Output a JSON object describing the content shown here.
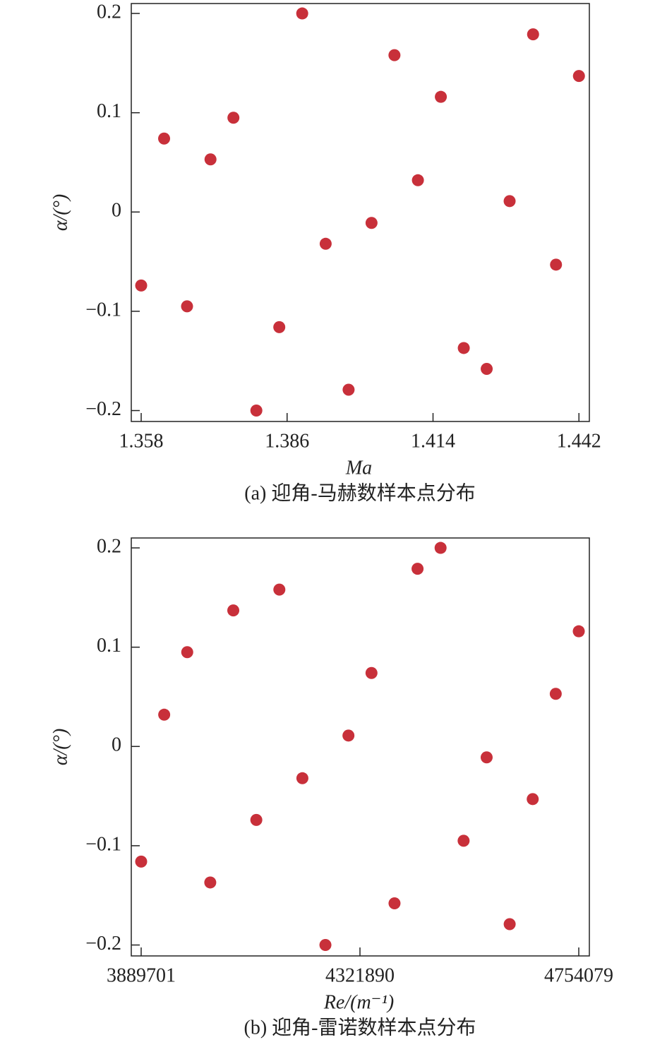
{
  "chart_data": [
    {
      "type": "scatter",
      "caption": "(a) 迎角-马赫数样本点分布",
      "xlabel": "Ma",
      "ylabel": "α/(°)",
      "color": "#c8303a",
      "x": [
        1.358,
        1.3624,
        1.3668,
        1.3713,
        1.3757,
        1.3801,
        1.3845,
        1.3889,
        1.3934,
        1.3978,
        1.4022,
        1.4066,
        1.4111,
        1.4155,
        1.4199,
        1.4243,
        1.4287,
        1.4332,
        1.4376,
        1.442
      ],
      "values": [
        -0.074,
        0.074,
        -0.095,
        0.053,
        0.095,
        -0.2,
        -0.116,
        0.2,
        -0.032,
        -0.179,
        -0.011,
        0.158,
        0.032,
        0.116,
        -0.137,
        -0.158,
        0.011,
        0.179,
        -0.053,
        0.137
      ],
      "xlim": [
        1.3561,
        1.444
      ],
      "xticks": [
        1.358,
        1.386,
        1.414,
        1.442
      ],
      "ylim": [
        -0.211,
        0.21
      ],
      "yticks": [
        {
          "value": -0.2,
          "label": "−0.2"
        },
        {
          "value": -0.1,
          "label": "−0.1"
        },
        0,
        0.1,
        0.2
      ]
    },
    {
      "type": "scatter",
      "caption": "(b) 迎角-雷诺数样本点分布",
      "xlabel": "Re/(m⁻¹)",
      "ylabel": "α/(°)",
      "color": "#c8303a",
      "x": [
        3889701,
        3935195,
        3980688,
        4026182,
        4071676,
        4117169,
        4162663,
        4208157,
        4253650,
        4299144,
        4344638,
        4390131,
        4435625,
        4481119,
        4526612,
        4572106,
        4617600,
        4663093,
        4708587,
        4754079
      ],
      "values": [
        -0.116,
        0.032,
        0.095,
        -0.137,
        0.137,
        -0.074,
        0.158,
        -0.032,
        -0.2,
        0.011,
        0.074,
        -0.158,
        0.179,
        0.2,
        -0.095,
        -0.011,
        -0.179,
        -0.053,
        0.053,
        0.116
      ],
      "xlim": [
        3870183,
        4774991
      ],
      "xticks": [
        3889701,
        4321890,
        4754079
      ],
      "ylim": [
        -0.211,
        0.21
      ],
      "yticks": [
        {
          "value": -0.2,
          "label": "−0.2"
        },
        {
          "value": -0.1,
          "label": "−0.1"
        },
        0,
        0.1,
        0.2
      ]
    }
  ]
}
